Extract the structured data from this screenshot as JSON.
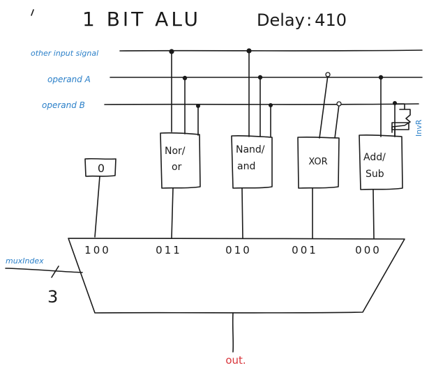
{
  "title": "1 BIT ALU",
  "delay_label": "Delay",
  "delay_value": "410",
  "colors": {
    "ink": "#1a1a1a",
    "blue_label": "#2a7fc8",
    "red_label": "#d8343a"
  },
  "signals": {
    "other_input": "other input signal",
    "operand_a": "operand A",
    "operand_b": "operand B"
  },
  "inverter_label": "InvR",
  "constant_block": "0",
  "blocks": {
    "nor_or": [
      "Nor/",
      "or"
    ],
    "nand_and": [
      "Nand/",
      "and"
    ],
    "xor": "XOR",
    "add_sub": [
      "Add/",
      "Sub"
    ]
  },
  "mux_codes": [
    "100",
    "011",
    "010",
    "001",
    "000"
  ],
  "mux_index_label": "muxIndex",
  "mux_index_width": "3",
  "output_label": "out."
}
